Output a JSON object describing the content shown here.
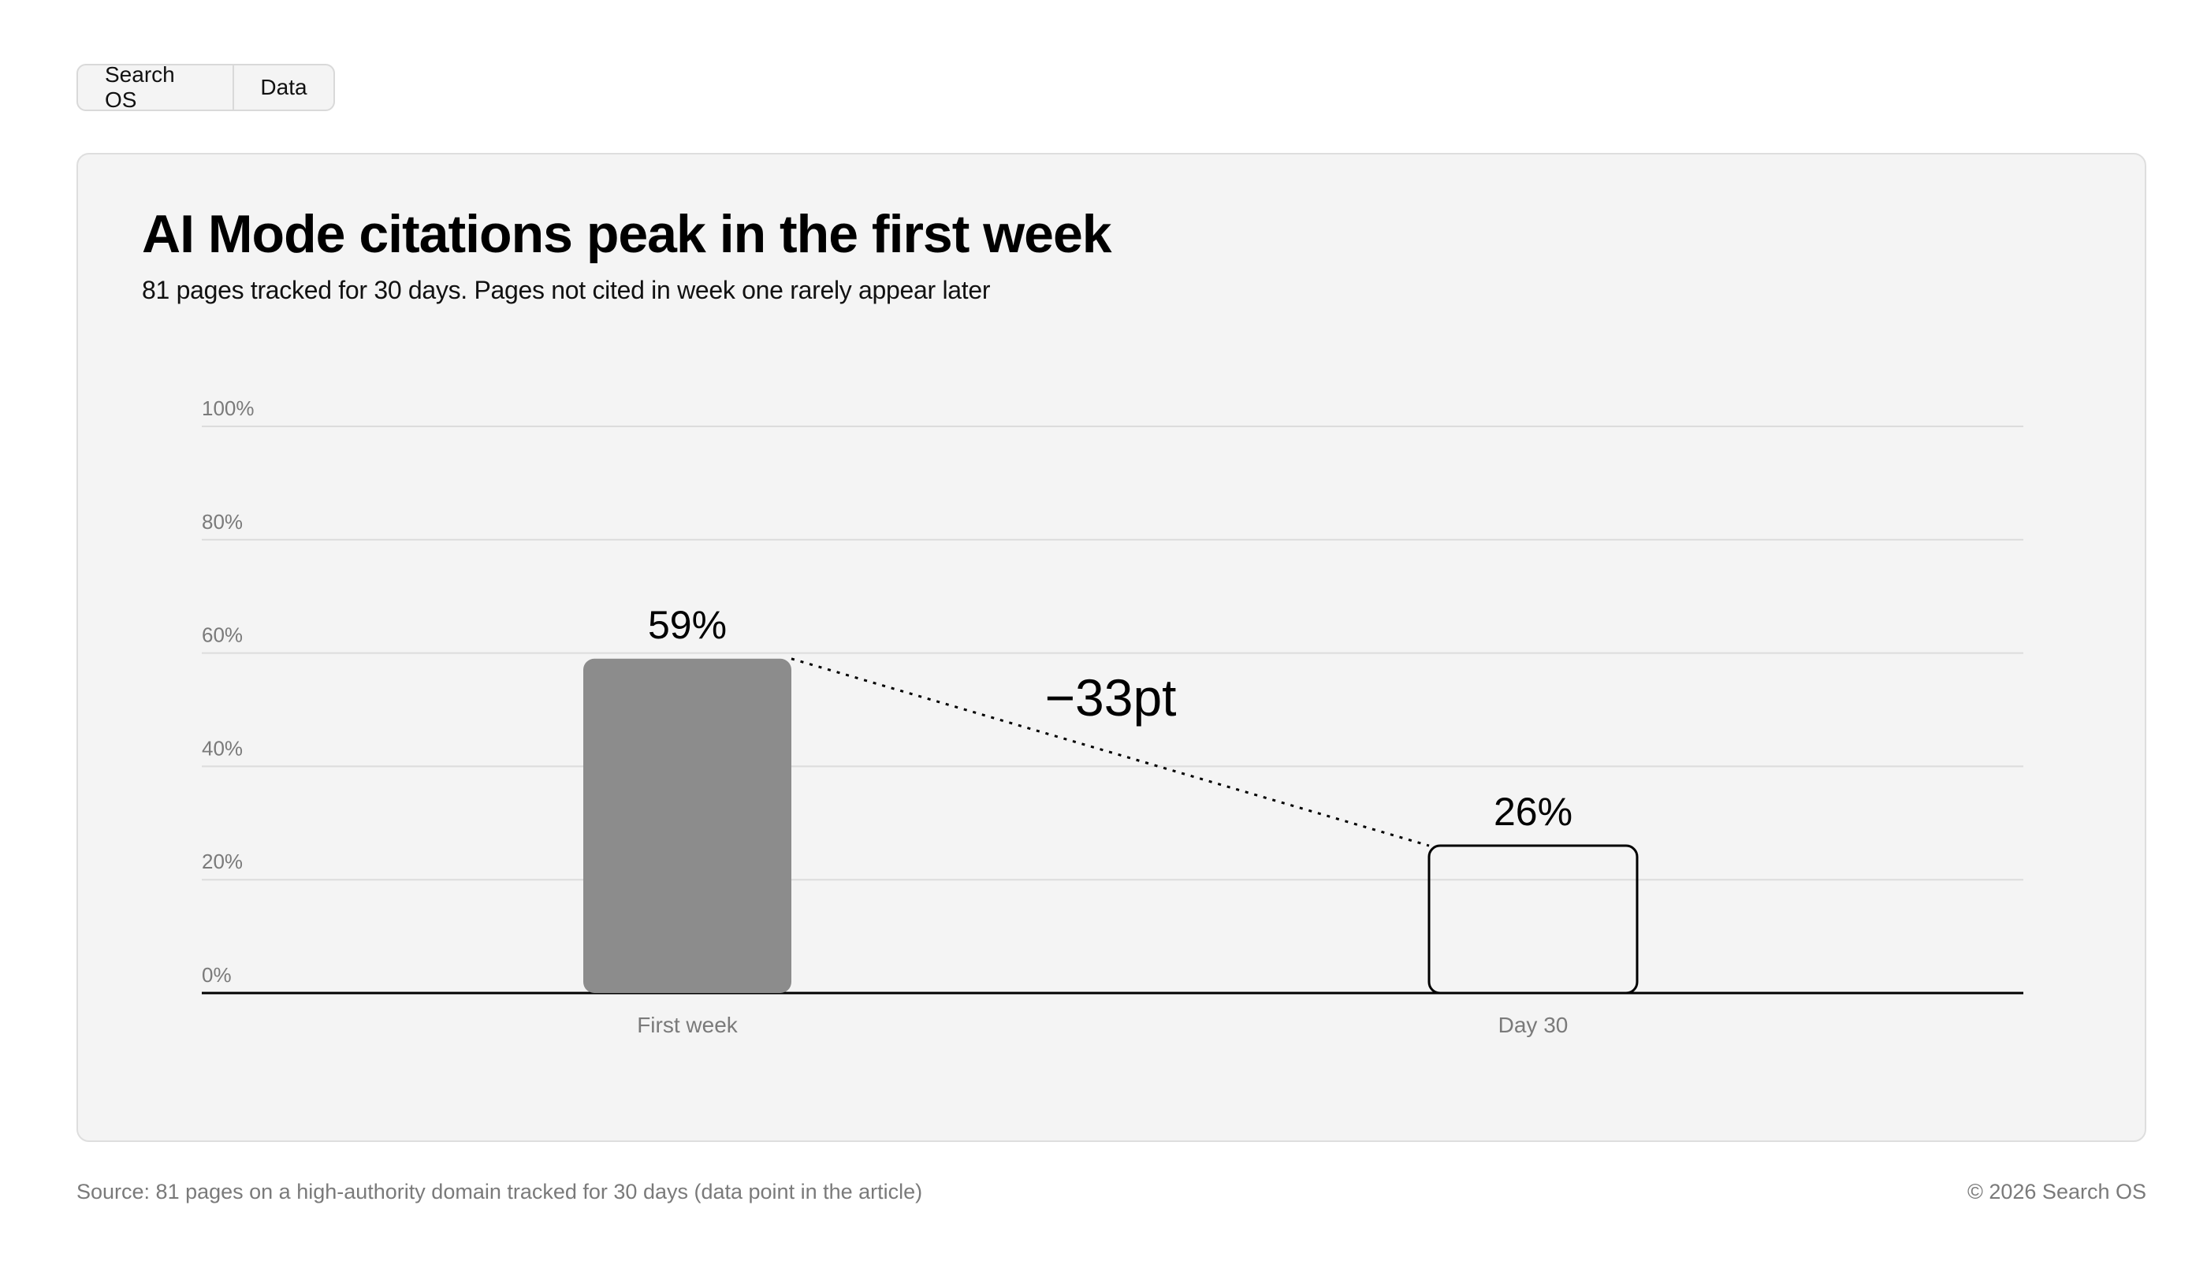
{
  "tabs": [
    {
      "label": "Search OS"
    },
    {
      "label": "Data"
    }
  ],
  "chart_data": {
    "type": "bar",
    "title": "AI Mode citations peak in the first week",
    "subtitle": "81 pages tracked for 30 days. Pages not cited in week one rarely appear later",
    "categories": [
      "First week",
      "Day 30"
    ],
    "values": [
      59,
      26
    ],
    "value_labels": [
      "59%",
      "26%"
    ],
    "ylim": [
      0,
      100
    ],
    "yticks": [
      0,
      20,
      40,
      60,
      80,
      100
    ],
    "ytick_labels": [
      "0%",
      "20%",
      "40%",
      "60%",
      "80%",
      "100%"
    ],
    "grid": true,
    "annotation": {
      "text": "−33pt",
      "from": "First week",
      "to": "Day 30"
    },
    "colors": {
      "bar_filled": "#8c8c8c",
      "bar_outline": "#000000",
      "grid": "#dcdcdc",
      "axis": "#000000",
      "tick_text": "#7a7a7a"
    }
  },
  "footer": {
    "source": "Source: 81 pages on a high-authority domain tracked for 30 days (data point in the article)",
    "copyright": "© 2026 Search OS"
  }
}
